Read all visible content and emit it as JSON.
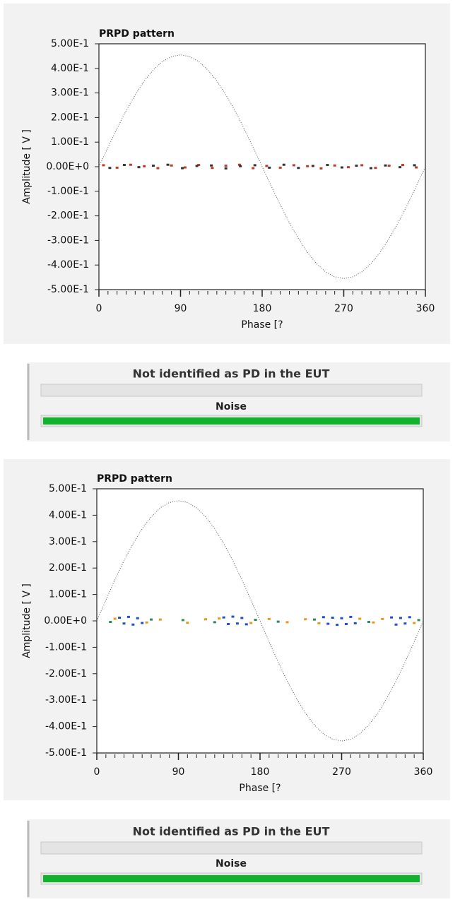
{
  "chart_data": [
    {
      "type": "scatter",
      "title": "PRPD pattern",
      "x_label": "Phase [?",
      "y_label": "Amplitude [ V ]",
      "xlim": [
        0,
        360
      ],
      "xticks": [
        0,
        90,
        180,
        270,
        360
      ],
      "ylim": [
        -0.5,
        0.5
      ],
      "yticks": [
        {
          "value": 0.5,
          "label": "5.00E-1"
        },
        {
          "value": 0.4,
          "label": "4.00E-1"
        },
        {
          "value": 0.3,
          "label": "3.00E-1"
        },
        {
          "value": 0.2,
          "label": "2.00E-1"
        },
        {
          "value": 0.1,
          "label": "1.00E-1"
        },
        {
          "value": 0,
          "label": "0.00E+0"
        },
        {
          "value": -0.1,
          "label": "-1.00E-1"
        },
        {
          "value": -0.2,
          "label": "-2.00E-1"
        },
        {
          "value": -0.3,
          "label": "-3.00E-1"
        },
        {
          "value": -0.4,
          "label": "-4.00E-1"
        },
        {
          "value": -0.5,
          "label": "-5.00E-1"
        }
      ],
      "series": [
        {
          "mode": "line",
          "color": "#555555",
          "x": [
            0,
            10,
            20,
            30,
            40,
            50,
            60,
            70,
            80,
            90,
            100,
            110,
            120,
            130,
            140,
            150,
            160,
            170,
            180,
            190,
            200,
            210,
            220,
            230,
            240,
            250,
            260,
            270,
            280,
            290,
            300,
            310,
            320,
            330,
            340,
            350,
            360
          ],
          "values": [
            0,
            0.079,
            0.156,
            0.228,
            0.292,
            0.349,
            0.394,
            0.428,
            0.448,
            0.455,
            0.448,
            0.428,
            0.394,
            0.349,
            0.292,
            0.228,
            0.156,
            0.079,
            0,
            -0.079,
            -0.156,
            -0.228,
            -0.292,
            -0.349,
            -0.394,
            -0.428,
            -0.448,
            -0.455,
            -0.448,
            -0.428,
            -0.394,
            -0.349,
            -0.292,
            -0.228,
            -0.156,
            -0.079,
            0
          ]
        },
        {
          "mode": "markers",
          "color": "#c0392b",
          "x": [
            5,
            20,
            35,
            50,
            65,
            80,
            95,
            110,
            125,
            140,
            155,
            170,
            185,
            200,
            215,
            230,
            245,
            260,
            275,
            290,
            305,
            320,
            335,
            350
          ],
          "values": [
            0.006,
            -0.004,
            0.008,
            0.002,
            -0.006,
            0.005,
            -0.003,
            0.007,
            -0.005,
            0.004,
            0.008,
            -0.006,
            0.003,
            -0.004,
            0.006,
            0.002,
            -0.007,
            0.005,
            -0.002,
            0.006,
            -0.005,
            0.004,
            0.007,
            -0.003
          ]
        },
        {
          "mode": "markers",
          "color": "#333333",
          "x": [
            12,
            28,
            44,
            60,
            76,
            92,
            108,
            124,
            140,
            156,
            172,
            188,
            204,
            220,
            236,
            252,
            268,
            284,
            300,
            316,
            332,
            348
          ],
          "values": [
            -0.005,
            0.007,
            -0.002,
            0.004,
            0.008,
            -0.006,
            0.003,
            0.005,
            -0.007,
            0.002,
            0.006,
            -0.004,
            0.008,
            -0.005,
            0.003,
            0.007,
            -0.003,
            0.004,
            -0.006,
            0.005,
            -0.002,
            0.006
          ]
        }
      ]
    },
    {
      "type": "scatter",
      "title": "PRPD pattern",
      "x_label": "Phase [?",
      "y_label": "Amplitude [ V ]",
      "xlim": [
        0,
        360
      ],
      "xticks": [
        0,
        90,
        180,
        270,
        360
      ],
      "ylim": [
        -0.5,
        0.5
      ],
      "yticks": [
        {
          "value": 0.5,
          "label": "5.00E-1"
        },
        {
          "value": 0.4,
          "label": "4.00E-1"
        },
        {
          "value": 0.3,
          "label": "3.00E-1"
        },
        {
          "value": 0.2,
          "label": "2.00E-1"
        },
        {
          "value": 0.1,
          "label": "1.00E-1"
        },
        {
          "value": 0,
          "label": "0.00E+0"
        },
        {
          "value": -0.1,
          "label": "-1.00E-1"
        },
        {
          "value": -0.2,
          "label": "-2.00E-1"
        },
        {
          "value": -0.3,
          "label": "-3.00E-1"
        },
        {
          "value": -0.4,
          "label": "-4.00E-1"
        },
        {
          "value": -0.5,
          "label": "-5.00E-1"
        }
      ],
      "series": [
        {
          "mode": "line",
          "color": "#555555",
          "x": [
            0,
            10,
            20,
            30,
            40,
            50,
            60,
            70,
            80,
            90,
            100,
            110,
            120,
            130,
            140,
            150,
            160,
            170,
            180,
            190,
            200,
            210,
            220,
            230,
            240,
            250,
            260,
            270,
            280,
            290,
            300,
            310,
            320,
            330,
            340,
            350,
            360
          ],
          "values": [
            0,
            0.079,
            0.156,
            0.228,
            0.292,
            0.349,
            0.394,
            0.428,
            0.448,
            0.455,
            0.448,
            0.428,
            0.394,
            0.349,
            0.292,
            0.228,
            0.156,
            0.079,
            0,
            -0.079,
            -0.156,
            -0.228,
            -0.292,
            -0.349,
            -0.394,
            -0.428,
            -0.448,
            -0.455,
            -0.448,
            -0.428,
            -0.394,
            -0.349,
            -0.292,
            -0.228,
            -0.156,
            -0.079,
            0
          ]
        },
        {
          "mode": "markers",
          "color": "#1f4fd1",
          "x": [
            25,
            30,
            35,
            40,
            45,
            50,
            140,
            145,
            150,
            155,
            160,
            165,
            250,
            255,
            260,
            265,
            270,
            275,
            280,
            285,
            325,
            330,
            335,
            340,
            345
          ],
          "values": [
            0.012,
            -0.01,
            0.015,
            -0.014,
            0.01,
            -0.008,
            0.013,
            -0.012,
            0.016,
            -0.01,
            0.011,
            -0.013,
            0.014,
            -0.011,
            0.012,
            -0.015,
            0.01,
            -0.012,
            0.015,
            -0.009,
            0.013,
            -0.014,
            0.011,
            -0.01,
            0.014
          ]
        },
        {
          "mode": "markers",
          "color": "#e69a1c",
          "x": [
            20,
            55,
            70,
            100,
            120,
            135,
            170,
            190,
            210,
            230,
            245,
            290,
            305,
            315,
            350
          ],
          "values": [
            0.008,
            -0.006,
            0.005,
            -0.007,
            0.006,
            0.009,
            -0.008,
            0.007,
            -0.005,
            0.006,
            -0.009,
            0.008,
            -0.006,
            0.007,
            -0.008
          ]
        },
        {
          "mode": "markers",
          "color": "#2e8b57",
          "x": [
            15,
            60,
            95,
            130,
            175,
            200,
            240,
            300,
            355
          ],
          "values": [
            -0.004,
            0.005,
            0.003,
            -0.005,
            0.004,
            -0.003,
            0.005,
            -0.004,
            0.003
          ]
        }
      ]
    }
  ],
  "status_panels": [
    {
      "title": "Not identified as PD in the EUT",
      "result": "Noise"
    },
    {
      "title": "Not identified as PD in the EUT",
      "result": "Noise"
    }
  ]
}
